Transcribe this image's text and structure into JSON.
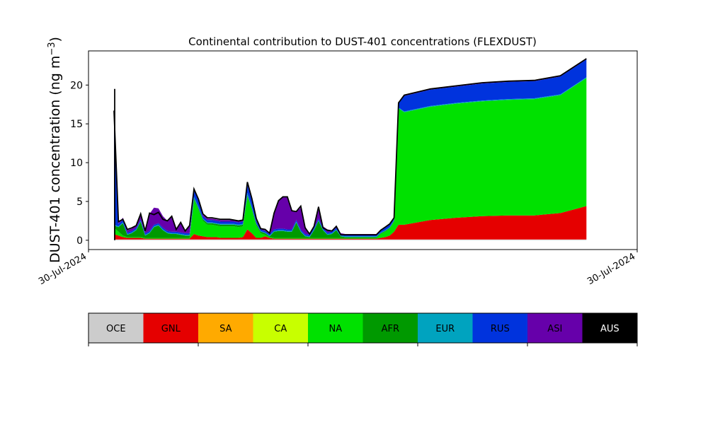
{
  "chart_data": {
    "type": "area",
    "stacked": true,
    "title": "Continental contribution to DUST-401 concentrations (FLEXDUST)",
    "ylabel": "DUST-401 concentration (ng m",
    "ylabel_sup": "−3",
    "ylabel_end": ")",
    "xlabel": "",
    "ylim": [
      -1.2,
      24.4
    ],
    "yticks": [
      0,
      5,
      10,
      15,
      20
    ],
    "xticklabels": [
      "30-Jul-2024",
      "30-Jul-2024"
    ],
    "grid": false,
    "x": [
      0,
      1,
      2,
      3,
      4,
      5,
      6,
      7,
      8,
      9,
      10,
      11,
      12,
      13,
      14,
      15,
      16,
      17,
      18,
      19,
      20,
      21,
      22,
      23,
      24,
      25,
      26,
      27,
      28,
      29,
      30,
      31,
      32,
      33,
      34,
      35,
      36,
      37,
      38,
      39,
      40,
      41,
      42,
      43,
      44,
      45,
      46,
      47,
      48,
      49,
      50,
      51,
      52,
      53,
      54,
      55,
      56,
      57,
      58,
      59,
      60,
      61,
      62,
      63,
      64,
      65,
      66,
      67,
      68,
      69,
      70,
      71,
      72
    ],
    "series": [
      {
        "name": "OCE",
        "color": "#cccccc",
        "values": [
          0.1,
          0.1,
          0.1,
          0.1,
          0.1,
          0.1,
          0.1,
          0.1,
          0.1,
          0.1,
          0.1,
          0.1,
          0.1,
          0.1,
          0.1,
          0.1,
          0.1,
          0.1,
          0.1,
          0.1,
          0.1,
          0.1,
          0.1,
          0.1,
          0.1,
          0.1,
          0.1,
          0.1,
          0.1,
          0.1,
          0.1,
          0.1,
          0.1,
          0.1,
          0.1,
          0.1,
          0.1,
          0.1,
          0.1,
          0.1,
          0.1,
          0.1,
          0.1,
          0.1,
          0.1,
          0.1,
          0.1,
          0.1,
          0.1,
          0.1,
          0.1,
          0.1,
          0.1,
          0.1,
          0.1,
          0.1,
          0.1,
          0.1,
          0.1,
          0.1,
          0.1,
          0.1,
          0.1,
          0.1,
          0.1,
          0.1,
          0.1,
          0.1,
          0.1,
          0.1,
          0.1,
          0.1,
          0.1
        ]
      },
      {
        "name": "GNL",
        "color": "#e50000",
        "values": [
          0.7,
          0.5,
          0.3,
          0.2,
          0.2,
          0.2,
          0.2,
          0.1,
          0.1,
          0.1,
          0.1,
          0.1,
          0.1,
          0.1,
          0.1,
          0.1,
          0.1,
          0.1,
          0.7,
          0.5,
          0.4,
          0.3,
          0.3,
          0.3,
          0.2,
          0.2,
          0.2,
          0.2,
          0.2,
          0.3,
          1.3,
          0.8,
          0.2,
          0.2,
          0.4,
          0.2,
          0.1,
          0.1,
          0.1,
          0.1,
          0.1,
          0.1,
          0.1,
          0.1,
          0.1,
          0.1,
          0.1,
          0.1,
          0.1,
          0.1,
          0.1,
          0.1,
          0.1,
          0.1,
          0.1,
          0.1,
          0.1,
          0.1,
          0.1,
          0.1,
          0.2,
          0.3,
          0.5,
          1.0,
          1.9,
          1.9,
          2.5,
          2.8,
          3.0,
          3.1,
          3.1,
          3.4,
          4.3
        ]
      },
      {
        "name": "SA",
        "color": "#ffaa00",
        "values": [
          0,
          0,
          0,
          0,
          0,
          0,
          0,
          0,
          0,
          0,
          0,
          0,
          0,
          0,
          0,
          0,
          0,
          0,
          0,
          0,
          0,
          0,
          0,
          0,
          0,
          0,
          0,
          0,
          0,
          0,
          0,
          0,
          0,
          0,
          0,
          0,
          0,
          0,
          0,
          0,
          0,
          0,
          0,
          0,
          0,
          0,
          0,
          0,
          0,
          0,
          0,
          0,
          0,
          0,
          0,
          0,
          0,
          0,
          0,
          0,
          0,
          0,
          0,
          0,
          0,
          0,
          0,
          0,
          0,
          0,
          0,
          0,
          0
        ]
      },
      {
        "name": "CA",
        "color": "#c8ff00",
        "values": [
          0,
          0,
          0,
          0,
          0,
          0,
          0,
          0,
          0,
          0,
          0,
          0,
          0,
          0,
          0,
          0,
          0,
          0,
          0,
          0,
          0,
          0,
          0,
          0,
          0,
          0,
          0,
          0,
          0,
          0,
          0,
          0,
          0,
          0,
          0,
          0,
          0,
          0,
          0,
          0,
          0,
          0,
          0,
          0,
          0,
          0,
          0,
          0,
          0,
          0,
          0,
          0,
          0,
          0,
          0,
          0,
          0,
          0,
          0,
          0,
          0,
          0,
          0,
          0,
          0,
          0,
          0,
          0,
          0,
          0,
          0,
          0,
          0
        ]
      },
      {
        "name": "NA",
        "color": "#00e100",
        "values": [
          0.8,
          0.5,
          0.2,
          0.1,
          0.1,
          0.1,
          0.1,
          0.1,
          0.1,
          0.1,
          0.1,
          0.1,
          0.1,
          0.1,
          0.1,
          0.1,
          0.1,
          0.1,
          4.4,
          3.3,
          2.0,
          1.6,
          1.6,
          1.5,
          1.5,
          1.5,
          1.5,
          1.5,
          1.4,
          1.4,
          4.2,
          3.0,
          1.6,
          0.6,
          0.2,
          0.1,
          0.1,
          0.1,
          0.1,
          0.1,
          0.1,
          0.1,
          0.1,
          0.1,
          0.1,
          0.1,
          0.1,
          0.1,
          0.1,
          0.1,
          0.1,
          0.1,
          0.1,
          0.1,
          0.1,
          0.1,
          0.1,
          0.1,
          0.1,
          0.1,
          0.5,
          0.7,
          0.9,
          1.3,
          15.0,
          14.5,
          14.6,
          14.7,
          14.8,
          14.9,
          15.0,
          15.2,
          16.5
        ]
      },
      {
        "name": "AFR",
        "color": "#009900",
        "values": [
          0.3,
          0.6,
          1.6,
          0.3,
          0.5,
          0.9,
          2.0,
          0.3,
          0.6,
          1.4,
          1.6,
          1.0,
          0.6,
          0.5,
          0.5,
          0.4,
          0.3,
          0.3,
          0.2,
          0.2,
          0.2,
          0.2,
          0.2,
          0.2,
          0.2,
          0.2,
          0.2,
          0.2,
          0.2,
          0.2,
          0.2,
          0.2,
          0.2,
          0.2,
          0.2,
          0.1,
          0.8,
          0.9,
          0.9,
          0.8,
          0.8,
          2.0,
          0.8,
          0.2,
          0.1,
          1.0,
          2.2,
          1.0,
          0.4,
          0.5,
          1.0,
          0.2,
          0.1,
          0.1,
          0.1,
          0.1,
          0.1,
          0.1,
          0.1,
          0.1,
          0.1,
          0.1,
          0.1,
          0.1,
          0,
          0,
          0,
          0,
          0,
          0,
          0,
          0,
          0
        ]
      },
      {
        "name": "EUR",
        "color": "#00a3bf",
        "values": [
          0.1,
          0.1,
          0.1,
          0.1,
          0.1,
          0.1,
          0.1,
          0.1,
          0.1,
          0.1,
          0.1,
          0.1,
          0.1,
          0.1,
          0.1,
          0.1,
          0.1,
          0.1,
          0.2,
          0.2,
          0.1,
          0.1,
          0.1,
          0.1,
          0.1,
          0.1,
          0.1,
          0.1,
          0.1,
          0.1,
          0.3,
          0.2,
          0.1,
          0.1,
          0.1,
          0.1,
          0.1,
          0.1,
          0.1,
          0.1,
          0.1,
          0.1,
          0.1,
          0.1,
          0.1,
          0.1,
          0.1,
          0.1,
          0.1,
          0.1,
          0.1,
          0.1,
          0.1,
          0.1,
          0.1,
          0.1,
          0.1,
          0.1,
          0.1,
          0.1,
          0.1,
          0.1,
          0.1,
          0.1,
          0.1,
          0.1,
          0.1,
          0.1,
          0.1,
          0.1,
          0.1,
          0.1,
          0.1
        ]
      },
      {
        "name": "RUS",
        "color": "#0033dd",
        "values": [
          14.3,
          0.3,
          0.3,
          0.2,
          0.2,
          0.2,
          0.2,
          0.2,
          0.2,
          0.2,
          0.2,
          0.2,
          0.2,
          0.2,
          0.2,
          0.2,
          0.2,
          0.2,
          0.9,
          0.8,
          0.3,
          0.3,
          0.3,
          0.3,
          0.3,
          0.3,
          0.3,
          0.3,
          0.3,
          0.3,
          1.0,
          0.9,
          0.3,
          0.2,
          0.2,
          0.2,
          0.2,
          0.2,
          0.2,
          0.2,
          0.2,
          0.2,
          0.2,
          0.2,
          0.2,
          0.2,
          0.2,
          0.2,
          0.2,
          0.2,
          0.2,
          0.2,
          0.2,
          0.2,
          0.2,
          0.2,
          0.2,
          0.2,
          0.2,
          0.2,
          0.2,
          0.3,
          0.3,
          0.3,
          0.5,
          2.0,
          2.1,
          2.1,
          2.2,
          2.2,
          2.2,
          2.3,
          2.3
        ]
      },
      {
        "name": "ASI",
        "color": "#6600aa",
        "values": [
          0.4,
          0.2,
          0.3,
          0.3,
          0.3,
          0.3,
          0.6,
          0.2,
          2.2,
          2.2,
          1.9,
          1.5,
          1.3,
          2.0,
          0.3,
          1.3,
          0.3,
          1.0,
          0.2,
          0.2,
          0.2,
          0.2,
          0.2,
          0.2,
          0.2,
          0.2,
          0.2,
          0.2,
          0.2,
          0.2,
          0.3,
          0.2,
          0.2,
          0.1,
          0.1,
          0.1,
          2.0,
          3.6,
          4.1,
          4.2,
          2.4,
          1.1,
          2.8,
          1.0,
          0.1,
          0.2,
          1.6,
          0.2,
          0.4,
          0.2,
          0.2,
          0.1,
          0.1,
          0.1,
          0.1,
          0.1,
          0.1,
          0.1,
          0.1,
          0.1,
          0.1,
          0.1,
          0.1,
          0.1,
          0.1,
          0.1,
          0.1,
          0.1,
          0.1,
          0.1,
          0.1,
          0.1,
          0.1
        ]
      },
      {
        "name": "AUS",
        "color": "#000000",
        "values": [
          0,
          0,
          0,
          0,
          0,
          0,
          0,
          0,
          0,
          0,
          0,
          0,
          0,
          0,
          0,
          0,
          0,
          0,
          0,
          0,
          0,
          0,
          0,
          0,
          0,
          0,
          0,
          0,
          0,
          0,
          0,
          0,
          0,
          0,
          0,
          0,
          0,
          0,
          0,
          0,
          0,
          0,
          0,
          0,
          0,
          0,
          0,
          0,
          0,
          0,
          0,
          0,
          0,
          0,
          0,
          0,
          0,
          0,
          0,
          0,
          0,
          0,
          0,
          0,
          0,
          0,
          0,
          0,
          0,
          0,
          0,
          0,
          0
        ]
      }
    ],
    "total": [
      16.7,
      2.4,
      2.7,
      1.4,
      1.6,
      1.9,
      3.4,
      1.2,
      3.5,
      3.3,
      3.6,
      2.7,
      2.5,
      3.1,
      1.4,
      2.3,
      1.2,
      1.9,
      6.6,
      5.3,
      3.4,
      2.9,
      2.9,
      2.8,
      2.7,
      2.7,
      2.7,
      2.6,
      2.5,
      2.6,
      7.5,
      5.4,
      2.8,
      1.5,
      1.4,
      0.9,
      3.5,
      5.1,
      5.6,
      5.6,
      3.8,
      3.7,
      4.4,
      1.6,
      0.8,
      1.8,
      4.3,
      1.6,
      1.3,
      1.2,
      1.8,
      0.7,
      0.7,
      0.7,
      0.7,
      0.7,
      0.7,
      0.7,
      0.7,
      0.7,
      1.3,
      1.7,
      2.1,
      2.9,
      17.7,
      18.7,
      19.5,
      19.9,
      20.3,
      20.5,
      20.6,
      21.2,
      23.4
    ]
  },
  "legend": {
    "items": [
      {
        "label": "OCE",
        "color": "#cccccc"
      },
      {
        "label": "GNL",
        "color": "#e50000"
      },
      {
        "label": "SA",
        "color": "#ffaa00"
      },
      {
        "label": "CA",
        "color": "#c8ff00"
      },
      {
        "label": "NA",
        "color": "#00e100"
      },
      {
        "label": "AFR",
        "color": "#009900"
      },
      {
        "label": "EUR",
        "color": "#00a3bf"
      },
      {
        "label": "RUS",
        "color": "#0033dd"
      },
      {
        "label": "ASI",
        "color": "#6600aa"
      },
      {
        "label": "AUS",
        "color": "#000000"
      }
    ],
    "dark_text_color": "#000000",
    "light_text_color": "#ffffff"
  }
}
